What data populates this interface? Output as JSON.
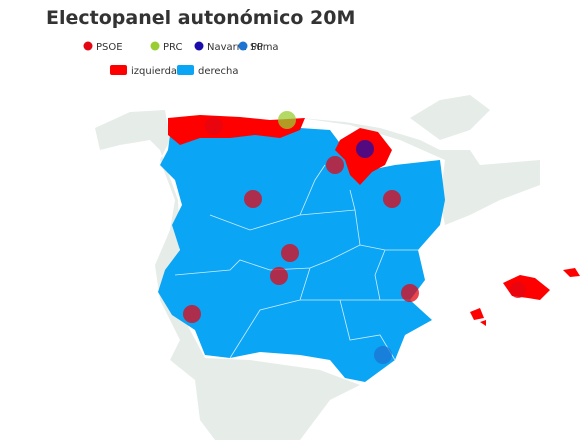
{
  "title": "Electopanel autonómico 20M",
  "legend": {
    "parties": [
      {
        "name": "PSOE",
        "color": "#e30613"
      },
      {
        "name": "PRC",
        "color": "#9acd32"
      },
      {
        "name": "Navarra Suma",
        "color": "#1a0dab"
      },
      {
        "name": "PP",
        "color": "#1e73d2"
      }
    ],
    "blocs": [
      {
        "name": "izquierda",
        "color": "#ff0000"
      },
      {
        "name": "derecha",
        "color": "#0aa5f5"
      }
    ]
  }
}
